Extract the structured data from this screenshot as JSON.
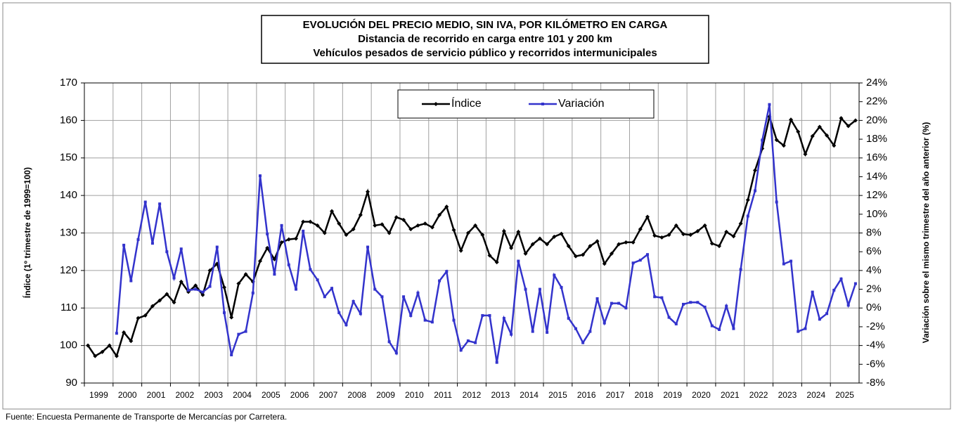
{
  "chart_data": {
    "type": "line",
    "title": [
      "EVOLUCIÓN DEL PRECIO MEDIO, SIN IVA, POR KILÓMETRO EN CARGA",
      "Distancia de recorrido en carga entre 101 y 200 km",
      "Vehículos pesados de servicio público y recorridos intermunicipales"
    ],
    "ylabel": "Índice (1º trimestre de 1999=100)",
    "y2label": "Variación sobre el mismo trimestre del año anterior (%)",
    "source": "Fuente: Encuesta Permanente de Transporte de Mercancías por Carretera.",
    "categories": [
      "1999",
      null,
      null,
      null,
      "2000",
      null,
      null,
      null,
      "2001",
      null,
      null,
      null,
      "2002",
      null,
      null,
      null,
      "2003",
      null,
      null,
      null,
      "2004",
      null,
      null,
      null,
      "2005",
      null,
      null,
      null,
      "2006",
      null,
      null,
      null,
      "2007",
      null,
      null,
      null,
      "2008",
      null,
      null,
      null,
      "2009",
      null,
      null,
      null,
      "2010",
      null,
      null,
      null,
      "2011",
      null,
      null,
      null,
      "2012",
      null,
      null,
      null,
      "2013",
      null,
      null,
      null,
      "2014",
      null,
      null,
      null,
      "2015",
      null,
      null,
      null,
      "2016",
      null,
      null,
      null,
      "2017",
      null,
      null,
      null,
      "2018",
      null,
      null,
      null,
      "2019",
      null,
      null,
      null,
      "2020",
      null,
      null,
      null,
      "2021",
      null,
      null,
      null,
      "2022",
      null,
      null,
      null,
      "2023",
      null,
      null,
      null,
      "2024",
      null,
      null,
      null,
      "2025",
      null,
      null,
      null
    ],
    "series": [
      {
        "name": "Índice",
        "color": "#000000",
        "marker": "diamond",
        "values": [
          100,
          97.2,
          98.3,
          100,
          97.2,
          103.5,
          101.2,
          107.3,
          108,
          110.5,
          112,
          113.7,
          111.5,
          117,
          114.3,
          116,
          113.5,
          120,
          121.8,
          115.5,
          107.5,
          116.5,
          119,
          117,
          122.5,
          126,
          123,
          127.5,
          128.3,
          128.5,
          133,
          133,
          132,
          130,
          135.8,
          132.5,
          129.5,
          131,
          134.8,
          141,
          132,
          132.3,
          130,
          134.2,
          133.5,
          131,
          132,
          132.5,
          131.5,
          134.8,
          137,
          130.8,
          125.3,
          130,
          132,
          129.5,
          124,
          122.2,
          130.5,
          126,
          130.3,
          124.5,
          127,
          128.5,
          127,
          129,
          129.8,
          126.5,
          123.8,
          124.2,
          126.5,
          127.8,
          121.8,
          124.5,
          127,
          127.5,
          127.5,
          131,
          134.3,
          129.3,
          128.8,
          129.5,
          132,
          129.7,
          129.5,
          130.5,
          132,
          127.2,
          126.5,
          130.3,
          129.1,
          132.5,
          138.8,
          146.7,
          152.5,
          161,
          154.8,
          153.3,
          160.2,
          157,
          151,
          155.8,
          158.3,
          156,
          153.3,
          160.6,
          158.5,
          160
        ]
      },
      {
        "name": "Variación",
        "color": "#3333cc",
        "marker": "square",
        "axis": "y2",
        "values": [
          null,
          null,
          null,
          null,
          -2.7,
          6.7,
          2.9,
          7.3,
          11.3,
          6.9,
          11.1,
          6.0,
          3.2,
          6.3,
          1.9,
          2.0,
          1.7,
          2.3,
          6.5,
          -0.5,
          -5.0,
          -2.8,
          -2.5,
          1.6,
          14.1,
          7.9,
          3.6,
          8.8,
          4.6,
          2.0,
          8.2,
          4.1,
          3.0,
          1.2,
          2.1,
          -0.5,
          -1.8,
          0.7,
          -0.6,
          6.5,
          2.0,
          1.2,
          -3.6,
          -4.8,
          1.2,
          -0.8,
          1.6,
          -1.3,
          -1.5,
          2.9,
          3.9,
          -1.3,
          -4.5,
          -3.5,
          -3.7,
          -0.8,
          -0.8,
          -5.8,
          -1.1,
          -2.8,
          5.0,
          2.0,
          -2.5,
          2.0,
          -2.6,
          3.5,
          2.2,
          -1.1,
          -2.2,
          -3.7,
          -2.5,
          1.0,
          -1.6,
          0.5,
          0.5,
          0.0,
          4.8,
          5.1,
          5.7,
          1.2,
          1.1,
          -1.0,
          -1.7,
          0.4,
          0.6,
          0.6,
          0.1,
          -1.9,
          -2.3,
          0.2,
          -2.2,
          4.1,
          9.8,
          12.5,
          17.9,
          21.7,
          11.3,
          4.7,
          5.0,
          -2.5,
          -2.2,
          1.7,
          -1.2,
          -0.6,
          1.9,
          3.1,
          0.3,
          2.6
        ]
      }
    ],
    "ylim": [
      90,
      170
    ],
    "yticks": [
      90,
      100,
      110,
      120,
      130,
      140,
      150,
      160,
      170
    ],
    "y2lim": [
      -8,
      24
    ],
    "y2ticks": [
      {
        "value": -8,
        "label": "-8%"
      },
      {
        "value": -6,
        "label": "-6%"
      },
      {
        "value": -4,
        "label": "-4%"
      },
      {
        "value": -2,
        "label": "-2%"
      },
      {
        "value": 0,
        "label": "0%"
      },
      {
        "value": 2,
        "label": "2%"
      },
      {
        "value": 4,
        "label": "4%"
      },
      {
        "value": 6,
        "label": "6%"
      },
      {
        "value": 8,
        "label": "8%"
      },
      {
        "value": 10,
        "label": "10%"
      },
      {
        "value": 12,
        "label": "12%"
      },
      {
        "value": 14,
        "label": "14%"
      },
      {
        "value": 16,
        "label": "16%"
      },
      {
        "value": 18,
        "label": "18%"
      },
      {
        "value": 20,
        "label": "20%"
      },
      {
        "value": 22,
        "label": "22%"
      },
      {
        "value": 24,
        "label": "24%"
      }
    ],
    "grid": true,
    "legend": "top"
  }
}
